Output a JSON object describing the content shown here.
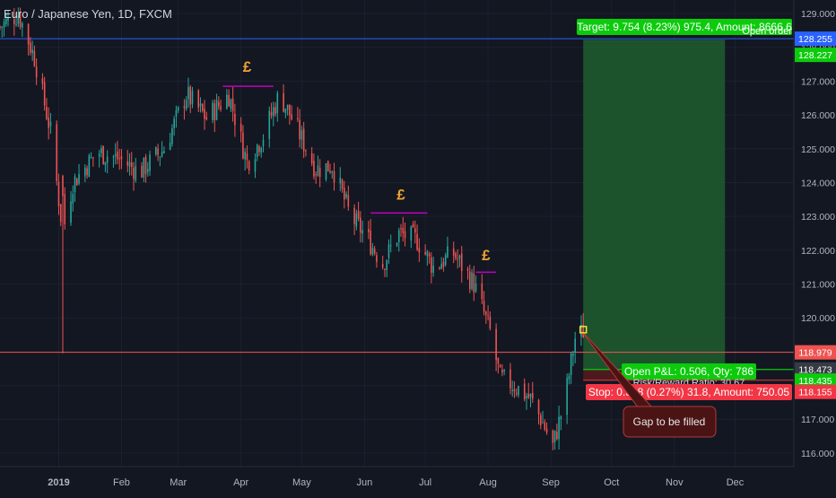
{
  "chart_title": "Euro / Japanese Yen, 1D, FXCM",
  "colors": {
    "background": "#131722",
    "up": "#26a69a",
    "down": "#ef5350",
    "target_zone": "#1e5a2e",
    "stop_red": "#f23645",
    "profit_green": "#0ccb0c",
    "blue_line": "#2962ff",
    "magenta": "#c000c0",
    "pound_orange": "#f0a030",
    "annotation_fill": "#4a1414",
    "annotation_border": "#b23a3a"
  },
  "y_axis": {
    "ticks": [
      "129.000",
      "128.000",
      "127.000",
      "126.000",
      "125.000",
      "124.000",
      "123.000",
      "122.000",
      "121.000",
      "120.000",
      "119.000",
      "118.000",
      "117.000",
      "116.000"
    ],
    "tick_values": [
      129,
      128,
      127,
      126,
      125,
      124,
      123,
      122,
      121,
      120,
      119,
      118,
      117,
      116
    ],
    "range": [
      115.6,
      129.4
    ]
  },
  "x_axis": {
    "labels": [
      {
        "text": "2019",
        "date": "2019-01-01",
        "bold": true
      },
      {
        "text": "Feb",
        "date": "2019-02-01"
      },
      {
        "text": "Mar",
        "date": "2019-03-01"
      },
      {
        "text": "Apr",
        "date": "2019-04-01"
      },
      {
        "text": "May",
        "date": "2019-05-01"
      },
      {
        "text": "Jun",
        "date": "2019-06-01"
      },
      {
        "text": "Jul",
        "date": "2019-07-01"
      },
      {
        "text": "Aug",
        "date": "2019-08-01"
      },
      {
        "text": "Sep",
        "date": "2019-09-01"
      },
      {
        "text": "Oct",
        "date": "2019-10-01"
      },
      {
        "text": "Nov",
        "date": "2019-11-01"
      },
      {
        "text": "Dec",
        "date": "2019-12-01"
      }
    ],
    "range": [
      "2018-12-03",
      "2019-12-30"
    ]
  },
  "price_badges": [
    {
      "text": "128.255",
      "value": 128.255,
      "color": "#2962ff"
    },
    {
      "text": "128.227",
      "value": 128.227,
      "color": "#0ccb0c"
    },
    {
      "text": "118.979",
      "value": 118.979,
      "color": "#ef5350"
    },
    {
      "text": "118.473",
      "value": 118.473,
      "color": "#363a45"
    },
    {
      "text": "118.435",
      "value": 118.435,
      "color": "#0ccb0c"
    },
    {
      "text": "118.155",
      "value": 118.155,
      "color": "#f23645"
    }
  ],
  "position": {
    "target_label": "Target: 9.754 (8.23%) 975.4, Amount: 8666.6",
    "open_order_label": "Open order",
    "pnl_label": "Open P&L: 0.506, Qty: 786",
    "rr_label": "Risk/Reward Ratio: 30.67",
    "stop_label": "Stop: 0.318 (0.27%) 31.8, Amount: 750.05",
    "entry": 118.473,
    "target": 128.227,
    "stop": 118.155,
    "start_date": "2019-09-17",
    "end_date": "2019-11-26"
  },
  "horizontal_lines": [
    {
      "value": 128.255,
      "color": "#2962ff"
    },
    {
      "value": 118.979,
      "color": "#ef5350"
    }
  ],
  "gap_line_start_date": "2018-12-31",
  "pound_markers": [
    {
      "symbol": "£",
      "date": "2019-04-04",
      "value": 127.28,
      "line_start": "2019-03-23",
      "line_end": "2019-04-17",
      "line_value": 126.85
    },
    {
      "symbol": "£",
      "date": "2019-06-19",
      "value": 123.5,
      "line_start": "2019-06-04",
      "line_end": "2019-07-02",
      "line_value": 123.1
    },
    {
      "symbol": "£",
      "date": "2019-07-31",
      "value": 121.7,
      "line_start": "2019-07-26",
      "line_end": "2019-08-05",
      "line_value": 121.35
    }
  ],
  "annotation": {
    "text": "Gap to be filled",
    "marker_date": "2019-09-17",
    "marker_value": 119.65
  }
}
